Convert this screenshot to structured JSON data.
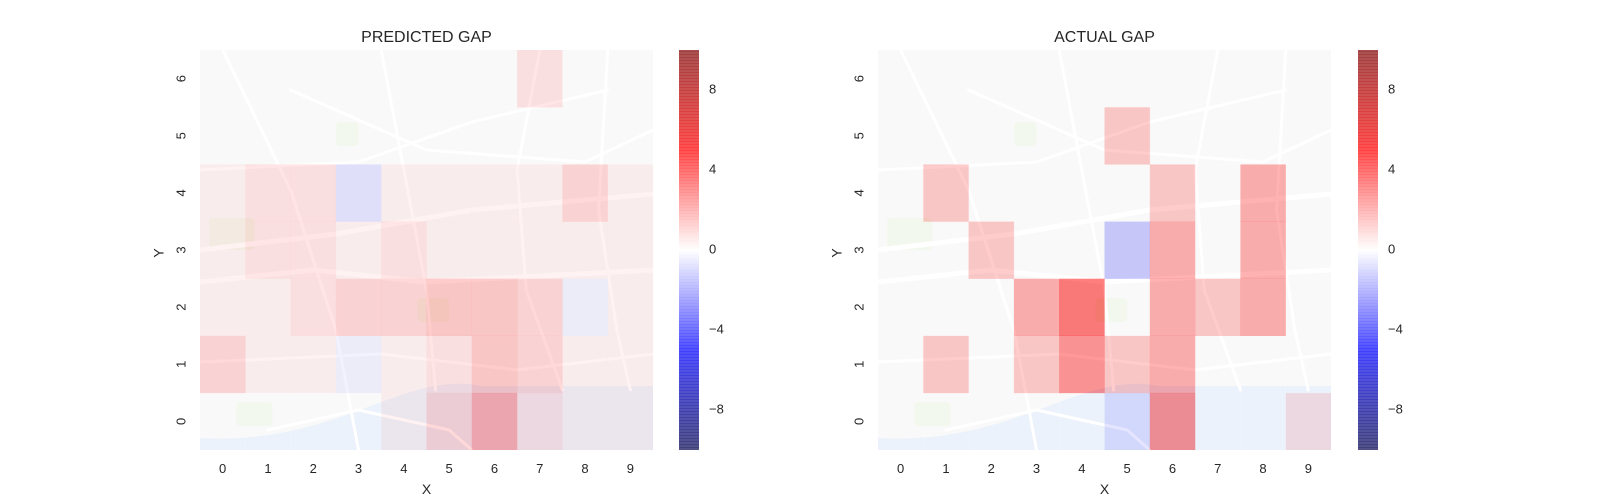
{
  "colors": {
    "positive": "#ff0000",
    "negative": "#0000ff",
    "neutral": "#ffffff",
    "map_background": "#f2f2f2",
    "map_roads": "#ffffff",
    "map_water": "#d6e4f7",
    "map_park": "#e6efd9"
  },
  "chart_data": [
    {
      "type": "heatmap",
      "title": "PREDICTED GAP",
      "xlabel": "X",
      "ylabel": "Y",
      "x": [
        "0",
        "1",
        "2",
        "3",
        "4",
        "5",
        "6",
        "7",
        "8",
        "9"
      ],
      "y": [
        "0",
        "1",
        "2",
        "3",
        "4",
        "5",
        "6"
      ],
      "background": "street map",
      "colormap": "seismic",
      "vmin": -10,
      "vmax": 10,
      "colorbar_ticks": [
        "8",
        "4",
        "0",
        "−4",
        "−8"
      ],
      "colorbar_tick_values": [
        8,
        4,
        0,
        -4,
        -8
      ],
      "values": [
        [
          0,
          0,
          0,
          0,
          0.5,
          1.5,
          3,
          1,
          0.5,
          0.5
        ],
        [
          1.5,
          0.5,
          0.5,
          -0.5,
          0.5,
          1,
          2,
          1.5,
          0.5,
          0.5
        ],
        [
          0.5,
          0.5,
          1,
          1.5,
          1.5,
          2,
          2,
          1.5,
          -0.5,
          0.5
        ],
        [
          0.5,
          1,
          1,
          0.5,
          1,
          0.5,
          0.5,
          0.5,
          0.5,
          0.5
        ],
        [
          0.5,
          1,
          1,
          -1,
          0.5,
          0.5,
          0.5,
          0.5,
          1.5,
          0.5
        ],
        [
          0,
          0,
          0,
          0,
          0,
          0,
          0,
          0,
          0,
          0
        ],
        [
          0,
          0,
          0,
          0,
          0,
          0,
          0,
          1,
          0,
          0
        ]
      ]
    },
    {
      "type": "heatmap",
      "title": "ACTUAL GAP",
      "xlabel": "X",
      "ylabel": "Y",
      "x": [
        "0",
        "1",
        "2",
        "3",
        "4",
        "5",
        "6",
        "7",
        "8",
        "9"
      ],
      "y": [
        "0",
        "1",
        "2",
        "3",
        "4",
        "5",
        "6"
      ],
      "background": "street map",
      "colormap": "seismic",
      "vmin": -10,
      "vmax": 10,
      "colorbar_ticks": [
        "8",
        "4",
        "0",
        "−4",
        "−8"
      ],
      "colorbar_tick_values": [
        8,
        4,
        0,
        -4,
        -8
      ],
      "values": [
        [
          0,
          0,
          0,
          0,
          0,
          -1,
          4,
          0,
          0,
          1
        ],
        [
          0,
          2,
          0,
          2,
          4,
          2,
          3,
          0,
          0,
          0
        ],
        [
          0,
          0,
          0,
          3,
          5,
          0,
          3,
          2,
          3,
          0
        ],
        [
          0,
          0,
          2,
          0,
          0,
          -2,
          3,
          0,
          3,
          0
        ],
        [
          0,
          2,
          0,
          0,
          0,
          0,
          2,
          0,
          3,
          0
        ],
        [
          0,
          0,
          0,
          0,
          0,
          2,
          0,
          0,
          0,
          0
        ],
        [
          0,
          0,
          0,
          0,
          0,
          0,
          0,
          0,
          0,
          0
        ]
      ]
    }
  ]
}
